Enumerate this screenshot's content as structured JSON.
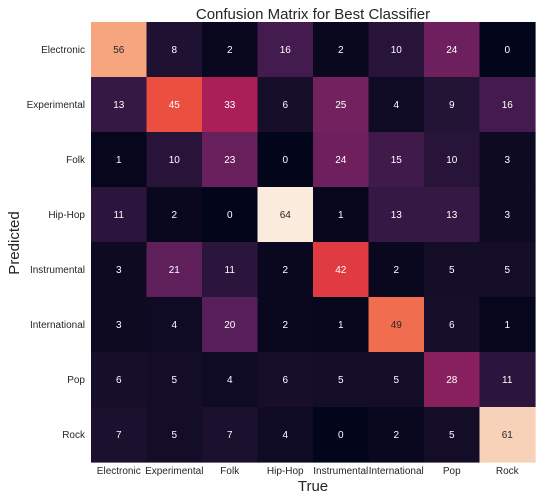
{
  "chart_data": {
    "type": "heatmap",
    "title": "Confusion Matrix for Best Classifier",
    "xlabel": "True",
    "ylabel": "Predicted",
    "x_categories": [
      "Electronic",
      "Experimental",
      "Folk",
      "Hip-Hop",
      "Instrumental",
      "International",
      "Pop",
      "Rock"
    ],
    "y_categories": [
      "Electronic",
      "Experimental",
      "Folk",
      "Hip-Hop",
      "Instrumental",
      "International",
      "Pop",
      "Rock"
    ],
    "values": [
      [
        56,
        8,
        2,
        16,
        2,
        10,
        24,
        0
      ],
      [
        13,
        45,
        33,
        6,
        25,
        4,
        9,
        16
      ],
      [
        1,
        10,
        23,
        0,
        24,
        15,
        10,
        3
      ],
      [
        11,
        2,
        0,
        64,
        1,
        13,
        13,
        3
      ],
      [
        3,
        21,
        11,
        2,
        42,
        2,
        5,
        5
      ],
      [
        3,
        4,
        20,
        2,
        1,
        49,
        6,
        1
      ],
      [
        6,
        5,
        4,
        6,
        5,
        5,
        28,
        11
      ],
      [
        7,
        5,
        7,
        4,
        0,
        2,
        5,
        61
      ]
    ],
    "value_range": [
      0,
      64
    ],
    "colormap": "rocket",
    "colorbar": false,
    "grid": false
  }
}
